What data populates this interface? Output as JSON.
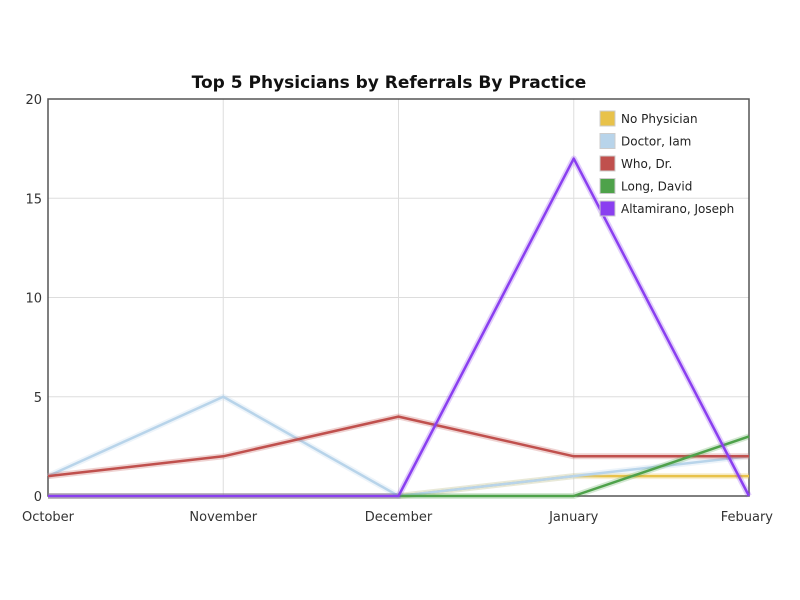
{
  "chart_data": {
    "type": "line",
    "title": "Top 5 Physicians by Referrals By Practice",
    "categories": [
      "October",
      "November",
      "December",
      "January",
      "Febuary"
    ],
    "ylim": [
      0,
      20
    ],
    "yticks": [
      0,
      5,
      10,
      15,
      20
    ],
    "grid": true,
    "legend_position": "top-right",
    "series": [
      {
        "name": "No Physician",
        "color": "#e8c24a",
        "values": [
          0,
          0,
          0,
          1,
          1
        ]
      },
      {
        "name": "Doctor, Iam",
        "color": "#b8d4ea",
        "values": [
          1,
          5,
          0,
          1,
          2
        ]
      },
      {
        "name": "Who, Dr.",
        "color": "#c0504d",
        "values": [
          1,
          2,
          4,
          2,
          2
        ]
      },
      {
        "name": "Long, David",
        "color": "#4ea24a",
        "values": [
          0,
          0,
          0,
          0,
          3
        ]
      },
      {
        "name": "Altamirano, Joseph",
        "color": "#8a3ff0",
        "values": [
          0,
          0,
          0,
          17,
          0
        ]
      }
    ]
  }
}
